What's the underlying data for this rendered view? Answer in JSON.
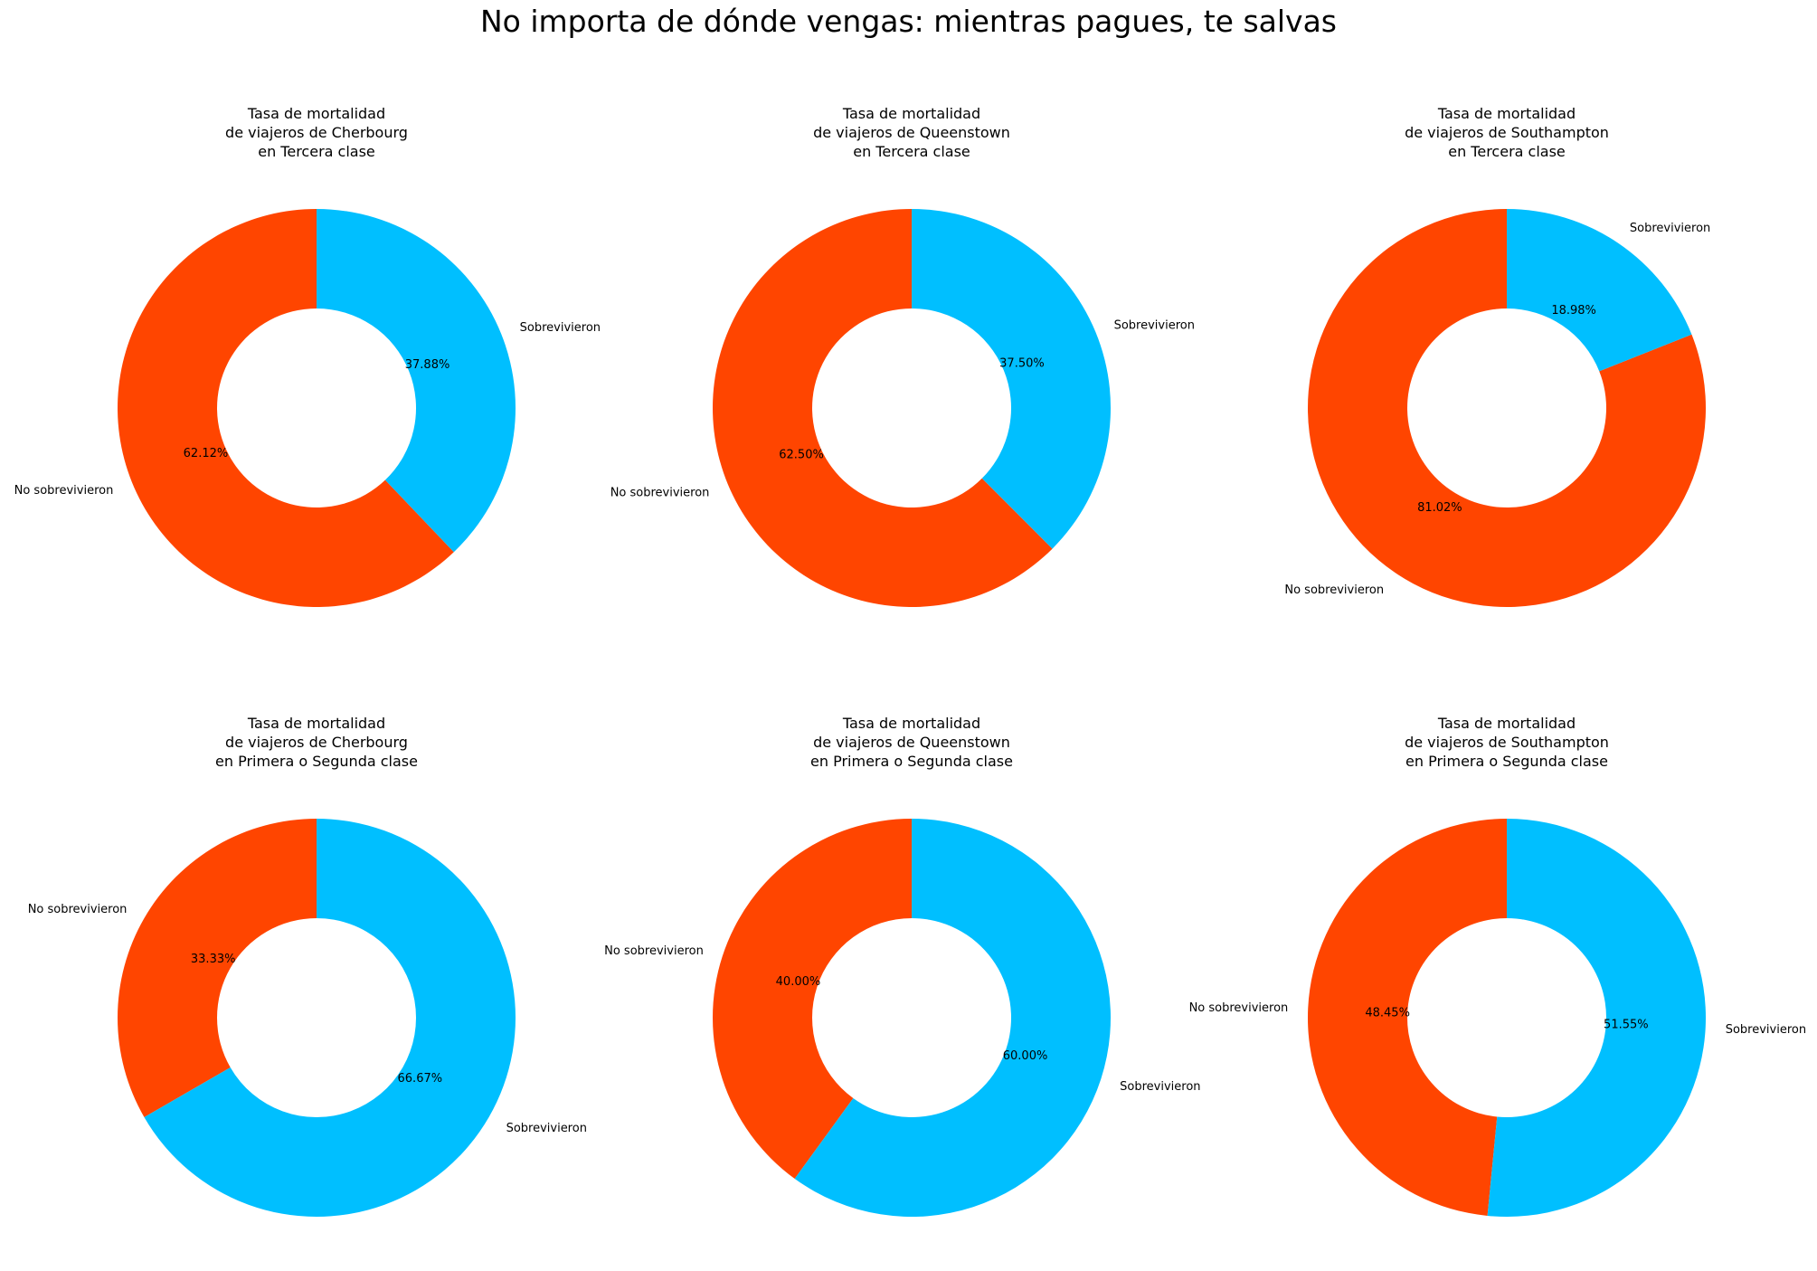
{
  "figure": {
    "suptitle": "No importa de dónde vengas: mientras pagues, te salvas"
  },
  "colors": {
    "no_sobrevivieron": "#FF4500",
    "sobrevivieron": "#00BFFF"
  },
  "chart_data": [
    {
      "type": "pie",
      "donut": true,
      "title_lines": [
        "Tasa de mortalidad",
        "de viajeros de Cherbourg",
        "en Tercera clase"
      ],
      "labels": [
        "No sobrevivieron",
        "Sobrevivieron"
      ],
      "values": [
        62.12,
        37.88
      ],
      "pct_labels": [
        "62.12%",
        "37.88%"
      ]
    },
    {
      "type": "pie",
      "donut": true,
      "title_lines": [
        "Tasa de mortalidad",
        "de viajeros de Queenstown",
        "en Tercera clase"
      ],
      "labels": [
        "No sobrevivieron",
        "Sobrevivieron"
      ],
      "values": [
        62.5,
        37.5
      ],
      "pct_labels": [
        "62.50%",
        "37.50%"
      ]
    },
    {
      "type": "pie",
      "donut": true,
      "title_lines": [
        "Tasa de mortalidad",
        "de viajeros de Southampton",
        "en Tercera clase"
      ],
      "labels": [
        "No sobrevivieron",
        "Sobrevivieron"
      ],
      "values": [
        81.02,
        18.98
      ],
      "pct_labels": [
        "81.02%",
        "18.98%"
      ]
    },
    {
      "type": "pie",
      "donut": true,
      "title_lines": [
        "Tasa de mortalidad",
        "de viajeros de Cherbourg",
        "en Primera o Segunda clase"
      ],
      "labels": [
        "No sobrevivieron",
        "Sobrevivieron"
      ],
      "values": [
        33.33,
        66.67
      ],
      "pct_labels": [
        "33.33%",
        "66.67%"
      ]
    },
    {
      "type": "pie",
      "donut": true,
      "title_lines": [
        "Tasa de mortalidad",
        "de viajeros de Queenstown",
        "en Primera o Segunda clase"
      ],
      "labels": [
        "No sobrevivieron",
        "Sobrevivieron"
      ],
      "values": [
        40.0,
        60.0
      ],
      "pct_labels": [
        "40.00%",
        "60.00%"
      ]
    },
    {
      "type": "pie",
      "donut": true,
      "title_lines": [
        "Tasa de mortalidad",
        "de viajeros de Southampton",
        "en Primera o Segunda clase"
      ],
      "labels": [
        "No sobrevivieron",
        "Sobrevivieron"
      ],
      "values": [
        48.45,
        51.55
      ],
      "pct_labels": [
        "48.45%",
        "51.55%"
      ]
    }
  ]
}
